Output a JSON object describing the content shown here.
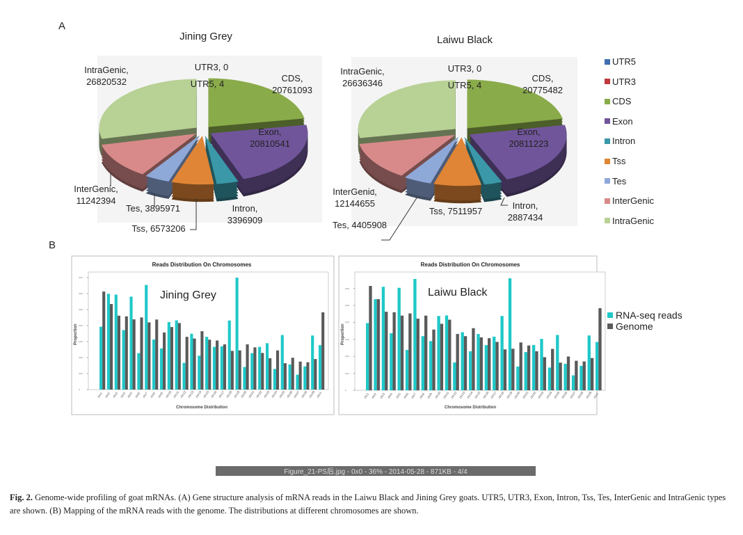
{
  "panel_letters": {
    "a": "A",
    "b": "B"
  },
  "pies": [
    {
      "title": "Jining Grey",
      "labels": {
        "IntraGenic": [
          "IntraGenic,",
          "26820532"
        ],
        "UTR3": [
          "UTR3, 0"
        ],
        "UTR5": [
          "UTR5, 4"
        ],
        "CDS": [
          "CDS,",
          "20761093"
        ],
        "Exon": [
          "Exon,",
          "20810541"
        ],
        "InterGenic": [
          "InterGenic,",
          "11242394"
        ],
        "Tes": [
          "Tes, 3895971"
        ],
        "Intron": [
          "Intron,",
          "3396909"
        ],
        "Tss": [
          "Tss, 6573206"
        ]
      },
      "values": {
        "UTR5": 4,
        "UTR3": 0,
        "CDS": 20761093,
        "Exon": 20810541,
        "Intron": 3396909,
        "Tss": 6573206,
        "Tes": 3895971,
        "InterGenic": 11242394,
        "IntraGenic": 26820532
      }
    },
    {
      "title": "Laiwu Black",
      "labels": {
        "IntraGenic": [
          "IntraGenic,",
          "26636346"
        ],
        "UTR3": [
          "UTR3, 0"
        ],
        "UTR5": [
          "UTR5, 4"
        ],
        "CDS": [
          "CDS,",
          "20775482"
        ],
        "Exon": [
          "Exon,",
          "20811223"
        ],
        "InterGenic": [
          "InterGenic,",
          "12144655"
        ],
        "Tss": [
          "Tss, 7511957"
        ],
        "Intron": [
          "Intron,",
          "2887434"
        ],
        "Tes": [
          "Tes, 4405908"
        ]
      },
      "values": {
        "UTR5": 4,
        "UTR3": 0,
        "CDS": 20775482,
        "Exon": 20811223,
        "Intron": 2887434,
        "Tss": 7511957,
        "Tes": 4405908,
        "InterGenic": 12144655,
        "IntraGenic": 26636346
      }
    }
  ],
  "pie_legend": [
    {
      "label": "UTR5",
      "color": "#3f6fb0"
    },
    {
      "label": "UTR3",
      "color": "#c0393b"
    },
    {
      "label": "CDS",
      "color": "#8aab4a"
    },
    {
      "label": "Exon",
      "color": "#70559a"
    },
    {
      "label": "Intron",
      "color": "#3a98a8"
    },
    {
      "label": "Tss",
      "color": "#e08535"
    },
    {
      "label": "Tes",
      "color": "#8ea8d8"
    },
    {
      "label": "InterGenic",
      "color": "#d88a8a"
    },
    {
      "label": "IntraGenic",
      "color": "#b8d195"
    }
  ],
  "chart_data": [
    {
      "type": "bar",
      "title": "Reads Distribution On Chromosomes",
      "annotation": "Jining Grey",
      "xlabel": "Chromosome Distribution",
      "ylabel": "Proportion",
      "ylim": [
        0,
        0.0735
      ],
      "yticks": [
        "0",
        "0.01",
        "0.02",
        "0.03",
        "0.04",
        "0.05",
        "0.06",
        "0.07"
      ],
      "categories": [
        "chr1",
        "chr2",
        "chr3",
        "chr4",
        "chr5",
        "chr6",
        "chr7",
        "chr8",
        "chr9",
        "chr10",
        "chr11",
        "chr12",
        "chr13",
        "chr14",
        "chr15",
        "chr16",
        "chr17",
        "chr18",
        "chr19",
        "chr20",
        "chr21",
        "chr22",
        "chr23",
        "chr24",
        "chr25",
        "chr26",
        "chr27",
        "chr28",
        "chr29",
        "chrX"
      ],
      "series": [
        {
          "name": "RNA-seq reads",
          "color": "#1fc8c8",
          "values": [
            0.0393,
            0.0599,
            0.0594,
            0.0372,
            0.0581,
            0.0228,
            0.0654,
            0.0313,
            0.0257,
            0.0422,
            0.0433,
            0.0167,
            0.0349,
            0.0212,
            0.033,
            0.0267,
            0.0271,
            0.0432,
            0.07,
            0.0141,
            0.0228,
            0.0267,
            0.029,
            0.0129,
            0.0341,
            0.0157,
            0.0093,
            0.0145,
            0.0338,
            0.0278
          ]
        },
        {
          "name": "Genome",
          "color": "#5a5a5a",
          "values": [
            0.0613,
            0.0535,
            0.0462,
            0.0458,
            0.0439,
            0.0451,
            0.042,
            0.0438,
            0.0357,
            0.0391,
            0.0416,
            0.033,
            0.0319,
            0.0365,
            0.0312,
            0.0307,
            0.0283,
            0.0242,
            0.0245,
            0.0283,
            0.0264,
            0.0229,
            0.0196,
            0.0245,
            0.0165,
            0.0199,
            0.0175,
            0.0171,
            0.0191,
            0.0483
          ]
        }
      ]
    },
    {
      "type": "bar",
      "title": "Reads Distribution On Chromosomes",
      "annotation": "Laiwu Black",
      "xlabel": "Chromosome Distribution",
      "ylabel": "Proportion",
      "ylim": [
        0,
        0.0697
      ],
      "yticks": [
        "0",
        "0.01",
        "0.02",
        "0.03",
        "0.04",
        "0.05",
        "0.06"
      ],
      "categories": [
        "chr1",
        "chr2",
        "chr3",
        "chr4",
        "chr5",
        "chr6",
        "chr7",
        "chr8",
        "chr9",
        "chr10",
        "chr11",
        "chr12",
        "chr13",
        "chr14",
        "chr15",
        "chr16",
        "chr17",
        "chr18",
        "chr19",
        "chr20",
        "chr21",
        "chr22",
        "chr23",
        "chr24",
        "chr25",
        "chr26",
        "chr27",
        "chr28",
        "chr29",
        "chrX"
      ],
      "series": [
        {
          "name": "RNA-seq reads",
          "color": "#1fc8c8",
          "values": [
            0.0396,
            0.0537,
            0.061,
            0.0336,
            0.0604,
            0.0238,
            0.0656,
            0.0319,
            0.029,
            0.0438,
            0.0441,
            0.0164,
            0.0342,
            0.023,
            0.0332,
            0.0266,
            0.0316,
            0.0438,
            0.066,
            0.014,
            0.0225,
            0.0267,
            0.0303,
            0.0134,
            0.0326,
            0.0156,
            0.0088,
            0.0144,
            0.0323,
            0.0285
          ]
        },
        {
          "name": "Genome",
          "color": "#5a5a5a",
          "values": [
            0.0615,
            0.0537,
            0.0463,
            0.046,
            0.044,
            0.0453,
            0.0422,
            0.044,
            0.0358,
            0.0392,
            0.0416,
            0.0332,
            0.0319,
            0.0366,
            0.0312,
            0.0307,
            0.0285,
            0.0241,
            0.0245,
            0.0282,
            0.0264,
            0.023,
            0.0195,
            0.0244,
            0.0163,
            0.0199,
            0.0174,
            0.017,
            0.019,
            0.0484
          ]
        }
      ]
    }
  ],
  "bar_legend": [
    {
      "label": "RNA-seq reads",
      "color": "#1fc8c8"
    },
    {
      "label": "Genome",
      "color": "#5a5a5a"
    }
  ],
  "status_bar": "Figure_21-PS后.jpg - 0x0 - 36% - 2014-05-28 - 871KB - 4/4",
  "caption": {
    "label": "Fig. 2.",
    "text": " Genome-wide profiling of goat mRNAs. (A) Gene structure analysis of mRNA reads in the Laiwu Black and Jining Grey goats. UTR5, UTR3, Exon, Intron, Tss, Tes, InterGenic and IntraGenic types are shown. (B) Mapping of the mRNA reads with the genome. The distributions at different chromosomes are shown."
  }
}
